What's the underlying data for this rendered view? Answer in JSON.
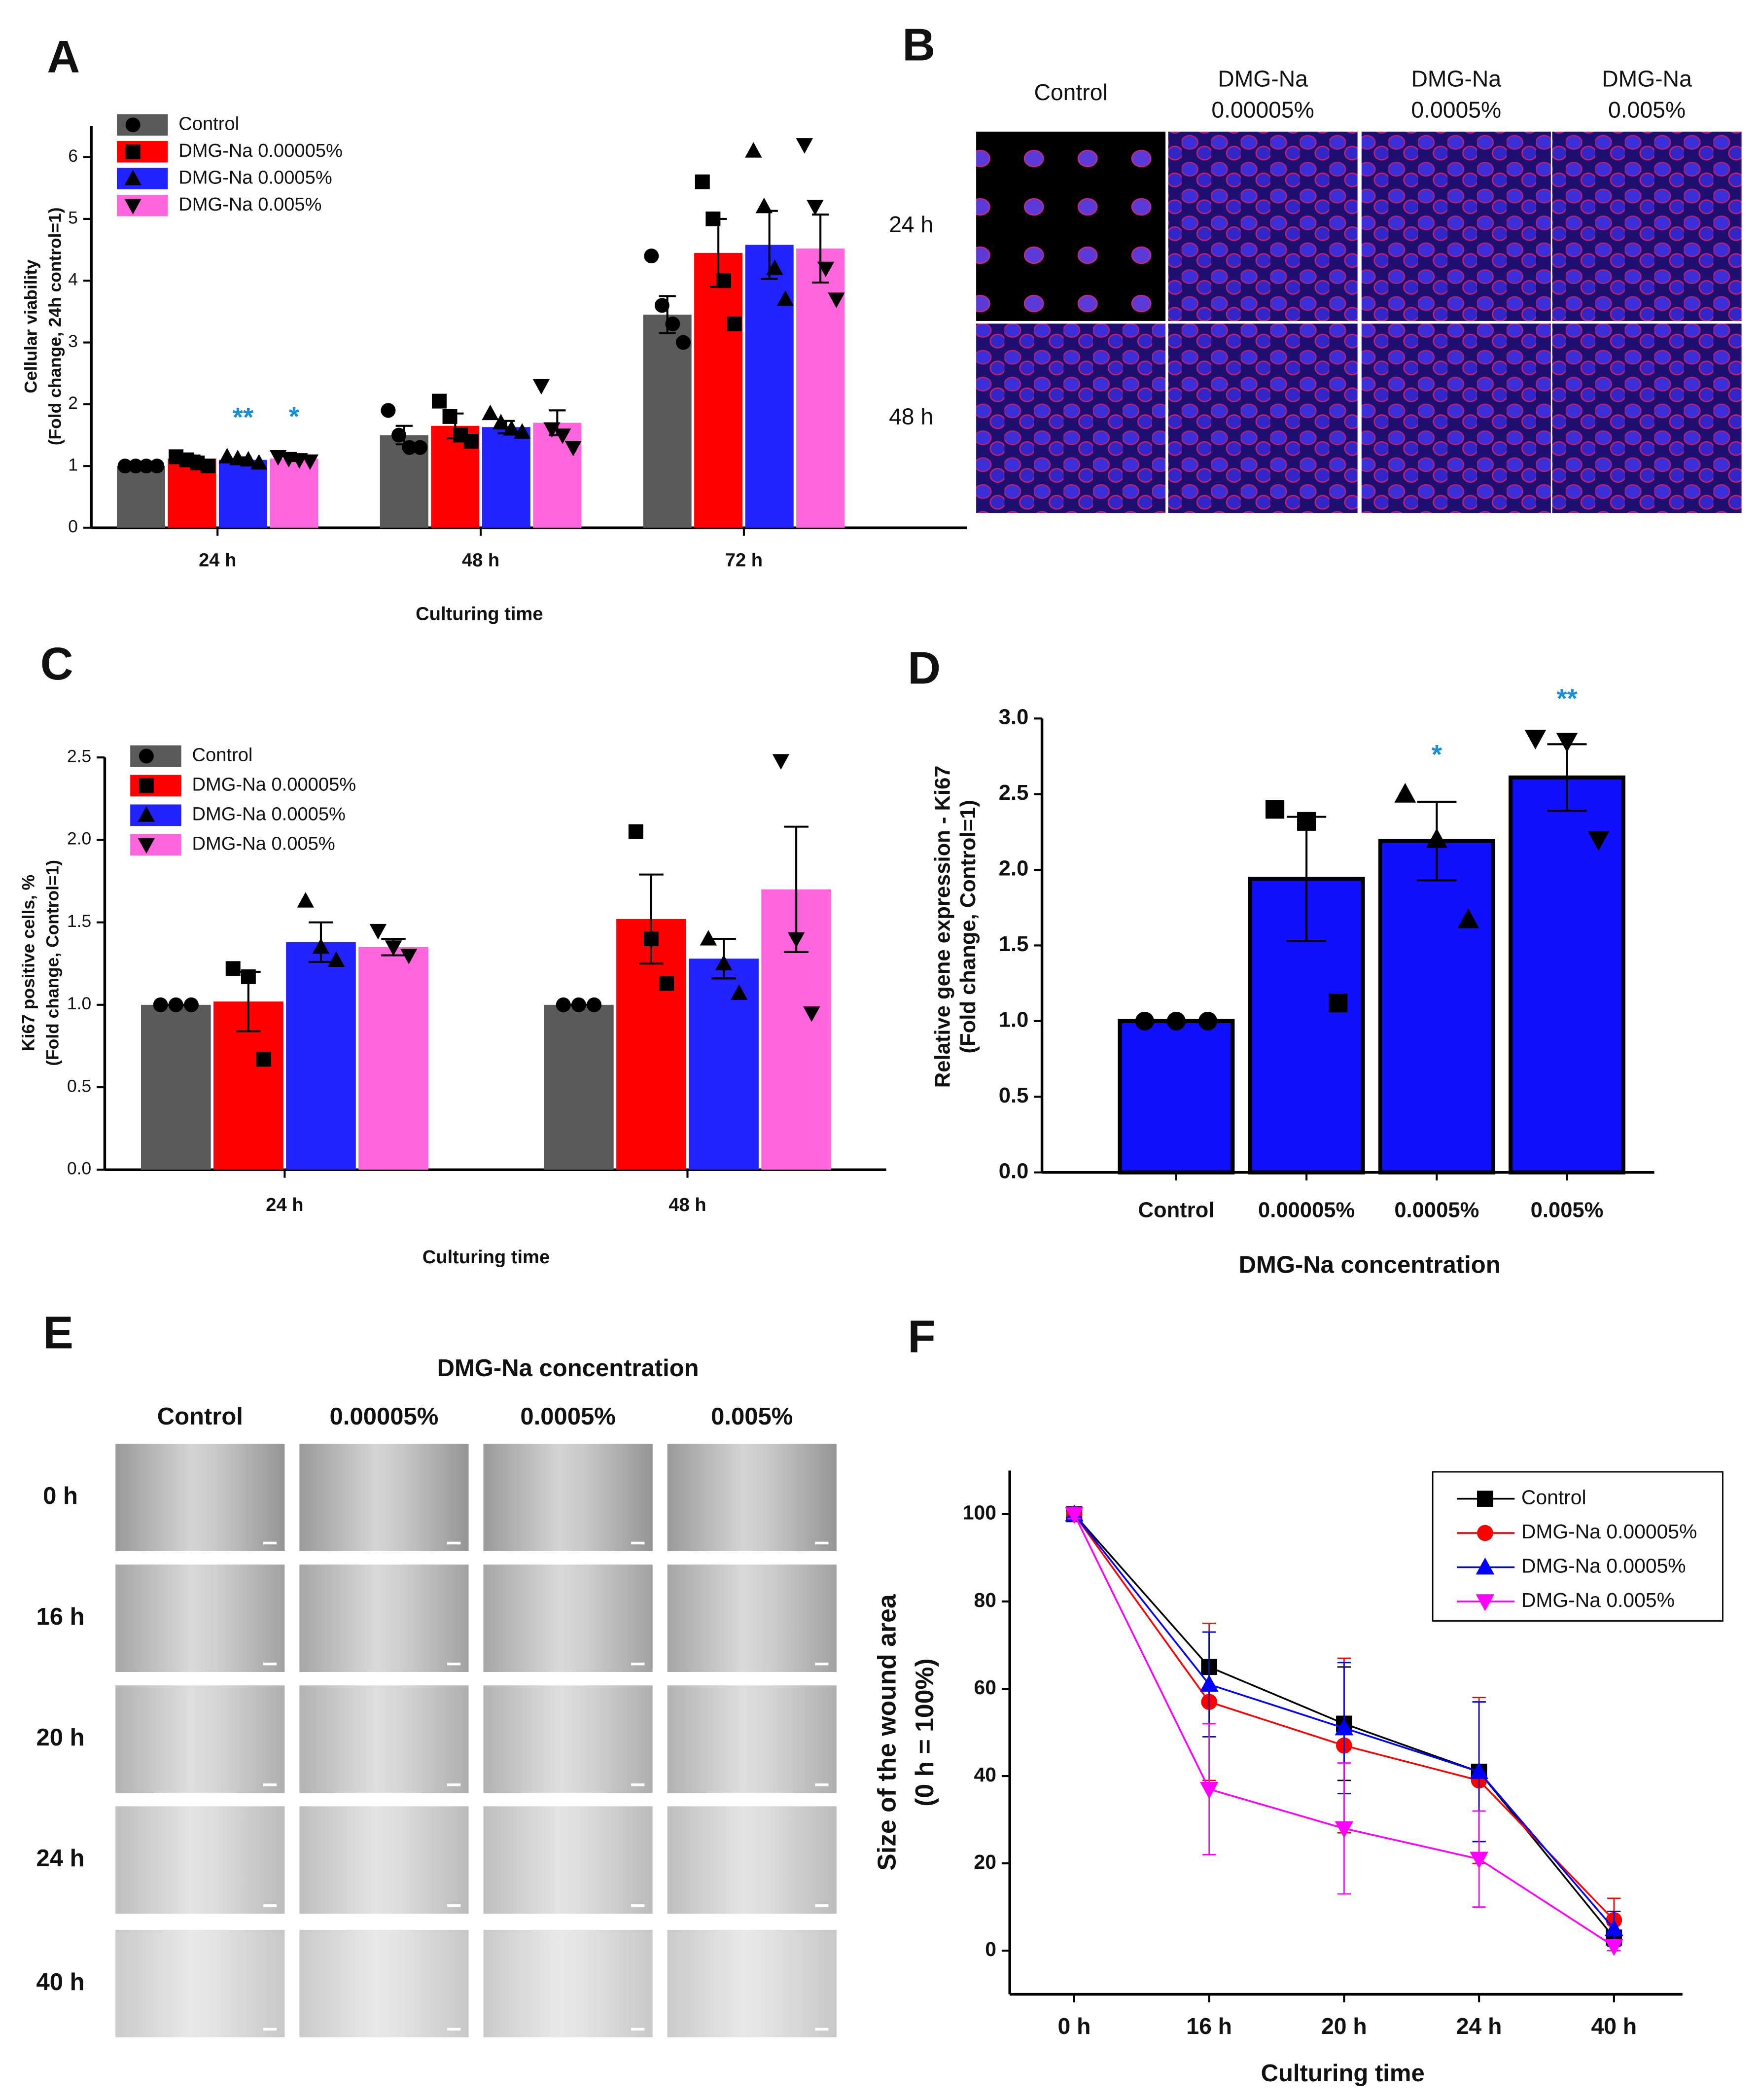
{
  "panel_b": {
    "label": "B",
    "columns": [
      [
        "Control"
      ],
      [
        "DMG-Na",
        "0.00005%"
      ],
      [
        "DMG-Na",
        "0.0005%"
      ],
      [
        "DMG-Na",
        "0.005%"
      ]
    ],
    "rows": [
      "24 h",
      "48 h"
    ]
  },
  "panel_e": {
    "label": "E",
    "title": "DMG-Na concentration",
    "columns": [
      "Control",
      "0.00005%",
      "0.0005%",
      "0.005%"
    ],
    "rows": [
      "0 h",
      "16 h",
      "20 h",
      "24 h",
      "40 h"
    ]
  },
  "chart_data": [
    {
      "type": "bar",
      "panel": "A",
      "categories": [
        "24 h",
        "48 h",
        "72 h"
      ],
      "ylabel": [
        "Cellular viability",
        "(Fold change, 24h control=1)"
      ],
      "xlabel": "Culturing time",
      "ylim": [
        0,
        6.5
      ],
      "yticks": [
        0,
        1,
        2,
        3,
        4,
        5,
        6
      ],
      "legend": "upper left",
      "series": [
        {
          "name": "Control",
          "color": "#5a5a5a",
          "marker": "circle",
          "values": [
            1.0,
            1.5,
            3.45
          ],
          "errors": [
            0.02,
            0.15,
            0.3
          ],
          "points": [
            [
              1.0,
              1.0,
              1.0,
              1.0
            ],
            [
              1.9,
              1.5,
              1.3,
              1.3
            ],
            [
              4.4,
              3.6,
              3.3,
              3.0
            ]
          ]
        },
        {
          "name": "DMG-Na 0.00005%",
          "color": "#ff0000",
          "marker": "square",
          "values": [
            1.12,
            1.65,
            4.45
          ],
          "errors": [
            0.05,
            0.2,
            0.55
          ],
          "points": [
            [
              1.15,
              1.1,
              1.05,
              1.0
            ],
            [
              2.05,
              1.8,
              1.5,
              1.4
            ],
            [
              5.6,
              5.0,
              4.0,
              3.3
            ]
          ]
        },
        {
          "name": "DMG-Na 0.0005%",
          "color": "#2222ff",
          "marker": "triangle-up",
          "values": [
            1.1,
            1.63,
            4.58
          ],
          "errors": [
            0.04,
            0.1,
            0.55
          ],
          "points": [
            [
              1.15,
              1.12,
              1.1,
              1.05
            ],
            [
              1.85,
              1.7,
              1.6,
              1.55
            ],
            [
              6.1,
              5.2,
              4.2,
              3.7
            ]
          ]
        },
        {
          "name": "DMG-Na 0.005%",
          "color": "#ff66dd",
          "marker": "triangle-down",
          "values": [
            1.12,
            1.7,
            4.52
          ],
          "errors": [
            0.04,
            0.2,
            0.55
          ],
          "points": [
            [
              1.15,
              1.12,
              1.1,
              1.08
            ],
            [
              2.3,
              1.6,
              1.5,
              1.3
            ],
            [
              6.2,
              5.2,
              4.2,
              3.7
            ]
          ]
        }
      ],
      "annotations": [
        {
          "text": "**",
          "category": 0,
          "series": 2,
          "color": "#1a8fd6"
        },
        {
          "text": "*",
          "category": 0,
          "series": 3,
          "color": "#1a8fd6"
        }
      ]
    },
    {
      "type": "bar",
      "panel": "C",
      "categories": [
        "24 h",
        "48 h"
      ],
      "ylabel": [
        "Ki67 positive cells, %",
        "(Fold change, Control=1)"
      ],
      "xlabel": "Culturing time",
      "ylim": [
        0,
        2.5
      ],
      "yticks": [
        {
          "value": 0,
          "label": "0.0"
        },
        0.5,
        {
          "value": 1,
          "label": "1.0"
        },
        1.5,
        {
          "value": 2,
          "label": "2.0"
        },
        2.5
      ],
      "legend": "upper left",
      "series": [
        {
          "name": "Control",
          "color": "#5a5a5a",
          "marker": "circle",
          "values": [
            1.0,
            1.0
          ],
          "errors": [
            0,
            0
          ],
          "points": [
            [
              1.0,
              1.0,
              1.0
            ],
            [
              1.0,
              1.0,
              1.0
            ]
          ]
        },
        {
          "name": "DMG-Na 0.00005%",
          "color": "#ff0000",
          "marker": "square",
          "values": [
            1.02,
            1.52
          ],
          "errors": [
            0.18,
            0.27
          ],
          "points": [
            [
              1.22,
              1.17,
              0.67
            ],
            [
              2.05,
              1.4,
              1.13
            ]
          ]
        },
        {
          "name": "DMG-Na 0.0005%",
          "color": "#2222ff",
          "marker": "triangle-up",
          "values": [
            1.38,
            1.28
          ],
          "errors": [
            0.12,
            0.12
          ],
          "points": [
            [
              1.63,
              1.35,
              1.27
            ],
            [
              1.4,
              1.25,
              1.07
            ]
          ]
        },
        {
          "name": "DMG-Na 0.005%",
          "color": "#ff66dd",
          "marker": "triangle-down",
          "values": [
            1.35,
            1.7
          ],
          "errors": [
            0.05,
            0.38
          ],
          "points": [
            [
              1.45,
              1.35,
              1.3
            ],
            [
              2.48,
              1.4,
              0.95
            ]
          ]
        }
      ],
      "annotations": []
    },
    {
      "type": "bar",
      "panel": "D",
      "categories": [
        "Control",
        "0.00005%",
        "0.0005%",
        "0.005%"
      ],
      "ylabel": [
        "Relative gene expression - Ki67",
        "(Fold change, Control=1)"
      ],
      "xlabel": "DMG-Na concentration",
      "ylim": [
        0,
        3
      ],
      "yticks": [
        {
          "value": 0,
          "label": "0.0"
        },
        0.5,
        {
          "value": 1,
          "label": "1.0"
        },
        1.5,
        {
          "value": 2,
          "label": "2.0"
        },
        2.5,
        {
          "value": 3,
          "label": "3.0"
        }
      ],
      "series": [
        {
          "color": "#1010ff",
          "edgecolor": "#000000",
          "marker": "mixed",
          "markers": [
            "circle",
            "square",
            "triangle-up",
            "triangle-down"
          ],
          "values": [
            1.0,
            1.94,
            2.19,
            2.61
          ],
          "errors": [
            0,
            0.41,
            0.26,
            0.22
          ],
          "points": [
            [
              1.0,
              1.0,
              1.0
            ],
            [
              2.4,
              2.32,
              1.12
            ],
            [
              2.5,
              2.2,
              1.67
            ],
            [
              2.87,
              2.85,
              2.2
            ]
          ]
        }
      ],
      "annotations": [
        {
          "text": "*",
          "category": 2,
          "series": 0,
          "color": "#1a8fd6"
        },
        {
          "text": "**",
          "category": 3,
          "series": 0,
          "color": "#1a8fd6"
        }
      ]
    },
    {
      "type": "line",
      "panel": "F",
      "categories": [
        "0 h",
        "16 h",
        "20 h",
        "24 h",
        "40 h"
      ],
      "ylabel": [
        "Size of the wound area",
        "(0 h = 100%)"
      ],
      "xlabel": "Culturing time",
      "ylim": [
        -10,
        110
      ],
      "yticks": [
        0,
        20,
        40,
        60,
        80,
        100
      ],
      "legend": "upper right",
      "series": [
        {
          "name": "Control",
          "color": "#000000",
          "marker": "square",
          "values": [
            100,
            65,
            52,
            41,
            3
          ],
          "errors": [
            1,
            8,
            13,
            16,
            3
          ]
        },
        {
          "name": "DMG-Na 0.00005%",
          "color": "#ff0000",
          "marker": "circle",
          "values": [
            100,
            57,
            47,
            39,
            7
          ],
          "errors": [
            1,
            18,
            20,
            19,
            5
          ]
        },
        {
          "name": "DMG-Na 0.0005%",
          "color": "#0000ff",
          "marker": "triangle-up",
          "values": [
            100,
            61,
            51,
            41,
            5
          ],
          "errors": [
            1,
            12,
            15,
            16,
            4
          ]
        },
        {
          "name": "DMG-Na 0.005%",
          "color": "#ff00ff",
          "marker": "triangle-down",
          "values": [
            100,
            37,
            28,
            21,
            1
          ],
          "errors": [
            1,
            15,
            15,
            11,
            1
          ]
        }
      ]
    }
  ]
}
